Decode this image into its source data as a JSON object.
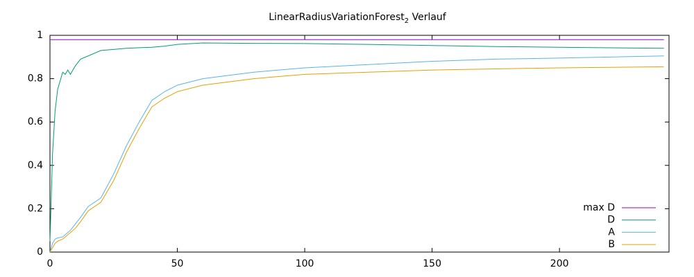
{
  "chart_data": {
    "type": "line",
    "title": [
      "LinearRadiusVariationForest",
      "2",
      " Verlauf"
    ],
    "x": [
      0,
      1,
      2,
      3,
      5,
      6,
      7,
      8,
      10,
      12,
      15,
      20,
      25,
      30,
      35,
      40,
      45,
      50,
      60,
      80,
      100,
      125,
      150,
      175,
      200,
      241
    ],
    "series": [
      {
        "name": "max D",
        "color": "#9400d3",
        "values": [
          0.98,
          0.98,
          0.98,
          0.98,
          0.98,
          0.98,
          0.98,
          0.98,
          0.98,
          0.98,
          0.98,
          0.98,
          0.98,
          0.98,
          0.98,
          0.98,
          0.98,
          0.98,
          0.98,
          0.98,
          0.98,
          0.98,
          0.98,
          0.98,
          0.98,
          0.98
        ]
      },
      {
        "name": "D",
        "color": "#009e73",
        "values": [
          0.05,
          0.45,
          0.65,
          0.75,
          0.83,
          0.82,
          0.84,
          0.82,
          0.86,
          0.89,
          0.905,
          0.93,
          0.935,
          0.94,
          0.943,
          0.945,
          0.95,
          0.958,
          0.965,
          0.963,
          0.962,
          0.958,
          0.953,
          0.948,
          0.945,
          0.94
        ]
      },
      {
        "name": "A",
        "color": "#56b4e9",
        "values": [
          0,
          0.04,
          0.06,
          0.065,
          0.07,
          0.08,
          0.09,
          0.1,
          0.13,
          0.16,
          0.21,
          0.25,
          0.36,
          0.49,
          0.6,
          0.7,
          0.74,
          0.77,
          0.8,
          0.83,
          0.85,
          0.865,
          0.88,
          0.89,
          0.895,
          0.905
        ]
      },
      {
        "name": "B",
        "color": "#e69f00",
        "values": [
          0,
          0.02,
          0.04,
          0.05,
          0.06,
          0.07,
          0.08,
          0.09,
          0.11,
          0.14,
          0.19,
          0.23,
          0.33,
          0.46,
          0.57,
          0.67,
          0.71,
          0.74,
          0.77,
          0.8,
          0.82,
          0.83,
          0.84,
          0.845,
          0.85,
          0.855
        ]
      }
    ],
    "xlim": [
      0,
      243
    ],
    "xticks": [
      0,
      50,
      100,
      150,
      200
    ],
    "ylim": [
      0,
      1
    ],
    "yticks": [
      0,
      0.2,
      0.4,
      0.6,
      0.8,
      1
    ],
    "legend": "lower right"
  }
}
